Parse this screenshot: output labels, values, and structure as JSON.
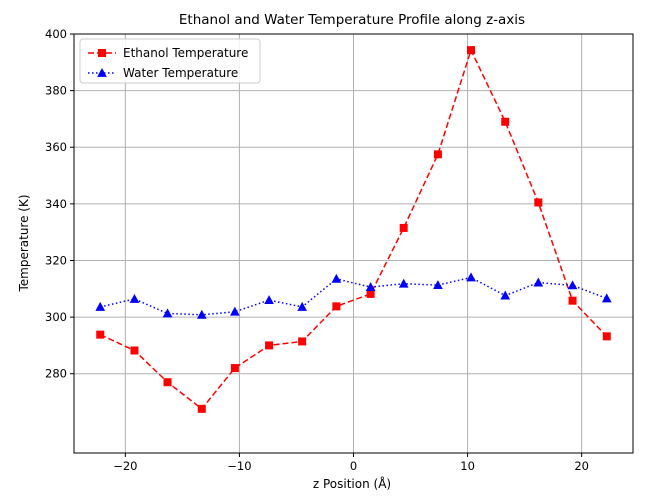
{
  "chart_data": {
    "type": "line",
    "title": "Ethanol and Water Temperature Profile along z-axis",
    "xlabel": "z Position (Å)",
    "ylabel": "Temperature (K)",
    "xlim": [
      -24.5,
      24.5
    ],
    "ylim": [
      252,
      400
    ],
    "xticks": [
      -20,
      -10,
      0,
      10,
      20
    ],
    "yticks": [
      280,
      300,
      320,
      340,
      360,
      380,
      400
    ],
    "xtick_labels": [
      "−20",
      "−10",
      "0",
      "10",
      "20"
    ],
    "ytick_labels": [
      "280",
      "300",
      "320",
      "340",
      "360",
      "380",
      "400"
    ],
    "grid": true,
    "legend_position": "upper-left",
    "x": [
      -22.2,
      -19.2,
      -16.3,
      -13.3,
      -10.4,
      -7.4,
      -4.5,
      -1.5,
      1.5,
      4.4,
      7.4,
      10.3,
      13.3,
      16.2,
      19.2,
      22.2
    ],
    "series": [
      {
        "name": "Ethanol Temperature",
        "color": "#ff0000",
        "line_style": "dashed",
        "marker": "square",
        "values": [
          293.8,
          288.2,
          277.0,
          267.6,
          282.0,
          290.0,
          291.4,
          303.8,
          308.2,
          331.5,
          357.5,
          394.3,
          369.0,
          340.5,
          305.8,
          293.2
        ]
      },
      {
        "name": "Water Temperature",
        "color": "#0000ff",
        "line_style": "dotted",
        "marker": "triangle",
        "values": [
          303.6,
          306.4,
          301.3,
          300.8,
          301.9,
          306.0,
          303.6,
          313.5,
          310.6,
          311.8,
          311.3,
          314.0,
          307.6,
          312.2,
          311.2,
          306.6
        ]
      }
    ]
  }
}
